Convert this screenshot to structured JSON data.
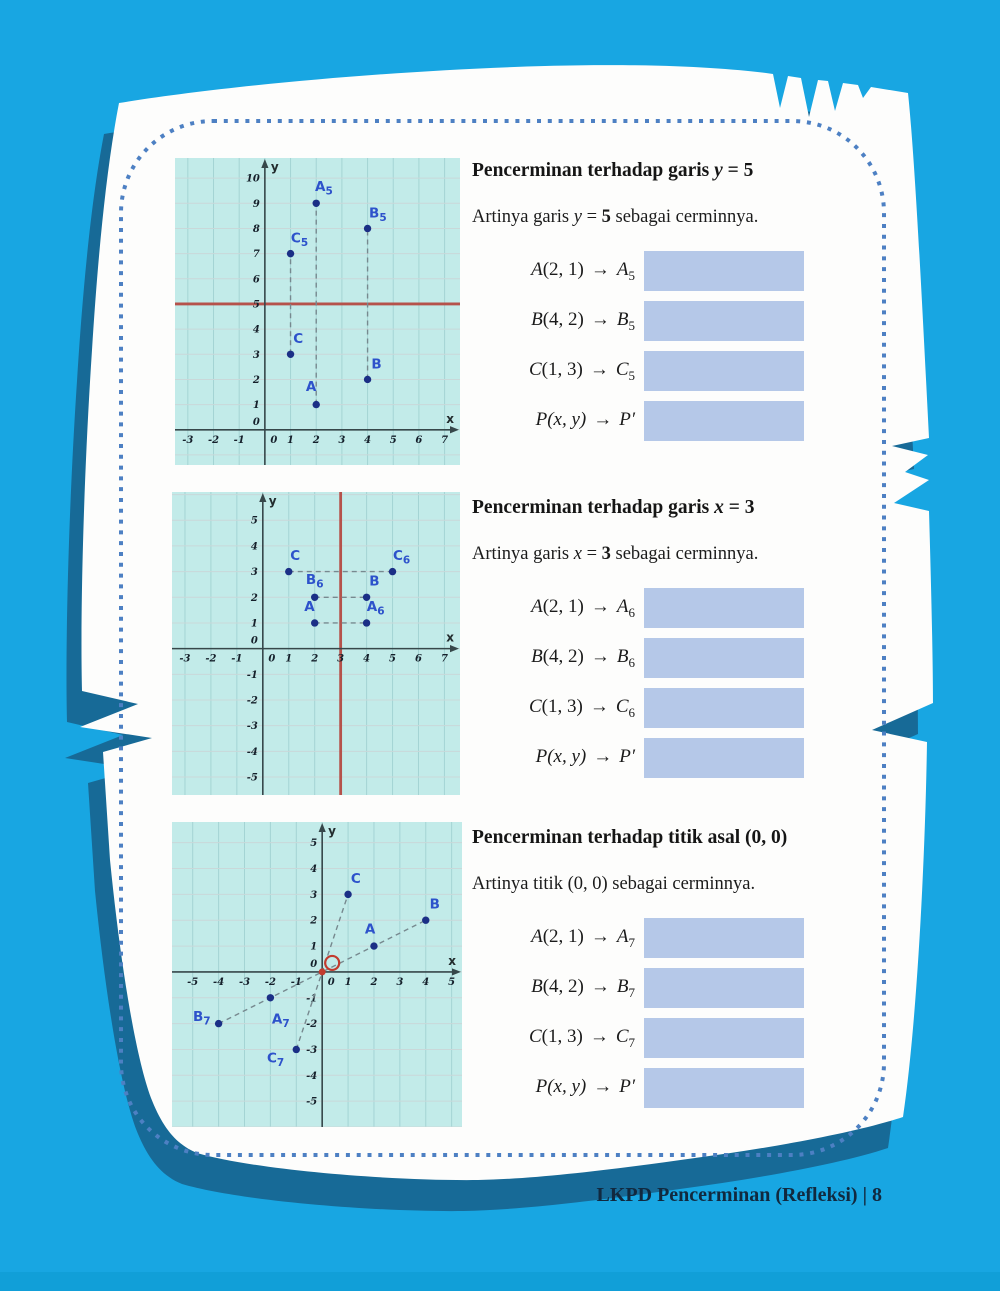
{
  "page": {
    "footer": "LKPD Pencerminan (Refleksi) | 8"
  },
  "sym": {
    "arrow": "→"
  },
  "colors": {
    "background": "#18a6e2",
    "bottom_strip": "#119fd8",
    "paper": "#fdfdfc",
    "paper_shadow": "#176a97",
    "dotted_border": "#4d80c3",
    "plot_bg": "#c2ebe9",
    "grid_v": "#a4d4d4",
    "grid_h": "#c9d8d9",
    "mirror_line": "#b5524b",
    "origin_red": "#c23b2e",
    "axis": "#36474a",
    "tick_text": "#15202b",
    "point": "#1b2f86",
    "point_label": "#2d52cb",
    "answer_box": "#b5c8e8",
    "segment": "#77898f"
  },
  "sections": [
    {
      "title": {
        "pre": "Pencerminan terhadap garis ",
        "var": "y",
        "post": " = 5"
      },
      "sub": {
        "pre": "Artinya garis ",
        "var": "y",
        "mid": " = ",
        "bold": "5",
        "post": " sebagai cerminnya."
      },
      "rows": [
        {
          "l": "A",
          "a": "(2, 1)",
          "r": "A",
          "s": "5",
          "pr": ""
        },
        {
          "l": "B",
          "a": "(4, 2)",
          "r": "B",
          "s": "5",
          "pr": ""
        },
        {
          "l": "C",
          "a": "(1, 3)",
          "r": "C",
          "s": "5",
          "pr": ""
        },
        {
          "l": "P",
          "a": "(x, y)",
          "r": "P",
          "s": "",
          "pr": "′"
        }
      ]
    },
    {
      "title": {
        "pre": "Pencerminan terhadap garis ",
        "var": "x",
        "post": " = 3"
      },
      "sub": {
        "pre": "Artinya garis ",
        "var": "x",
        "mid": " = ",
        "bold": "3",
        "post": " sebagai cerminnya."
      },
      "rows": [
        {
          "l": "A",
          "a": "(2, 1)",
          "r": "A",
          "s": "6",
          "pr": ""
        },
        {
          "l": "B",
          "a": "(4, 2)",
          "r": "B",
          "s": "6",
          "pr": ""
        },
        {
          "l": "C",
          "a": "(1, 3)",
          "r": "C",
          "s": "6",
          "pr": ""
        },
        {
          "l": "P",
          "a": "(x, y)",
          "r": "P",
          "s": "",
          "pr": "′"
        }
      ]
    },
    {
      "title": {
        "pre": "Pencerminan terhadap titik asal (0, 0)",
        "var": "",
        "post": ""
      },
      "sub": {
        "pre": "Artinya titik (0, 0) sebagai cerminnya.",
        "var": "",
        "mid": "",
        "bold": "",
        "post": ""
      },
      "rows": [
        {
          "l": "A",
          "a": "(2, 1)",
          "r": "A",
          "s": "7",
          "pr": ""
        },
        {
          "l": "B",
          "a": "(4, 2)",
          "r": "B",
          "s": "7",
          "pr": ""
        },
        {
          "l": "C",
          "a": "(1, 3)",
          "r": "C",
          "s": "7",
          "pr": ""
        },
        {
          "l": "P",
          "a": "(x, y)",
          "r": "P",
          "s": "",
          "pr": "′"
        }
      ]
    }
  ],
  "chart_data": [
    {
      "type": "scatter",
      "title": "Pencerminan terhadap garis y = 5",
      "xlabel": "x",
      "ylabel": "y",
      "xlim": [
        -3.5,
        7.6
      ],
      "ylim": [
        -1.4,
        10.8
      ],
      "xticks": [
        -3,
        -2,
        -1,
        0,
        1,
        2,
        3,
        4,
        5,
        6,
        7
      ],
      "yticks": [
        0,
        1,
        2,
        3,
        4,
        5,
        6,
        7,
        8,
        9,
        10
      ],
      "grid": true,
      "mirror": {
        "axis": "horizontal",
        "value": 5
      },
      "origin_marker": false,
      "points": [
        {
          "label": "A",
          "sub": "",
          "x": 2,
          "y": 1,
          "lx": 1.8,
          "ly": 1.7
        },
        {
          "label": "B",
          "sub": "",
          "x": 4,
          "y": 2,
          "lx": 4.35,
          "ly": 2.6
        },
        {
          "label": "C",
          "sub": "",
          "x": 1,
          "y": 3,
          "lx": 1.3,
          "ly": 3.6
        },
        {
          "label": "A",
          "sub": "5",
          "x": 2,
          "y": 9,
          "lx": 2.3,
          "ly": 9.65
        },
        {
          "label": "B",
          "sub": "5",
          "x": 4,
          "y": 8,
          "lx": 4.4,
          "ly": 8.6
        },
        {
          "label": "C",
          "sub": "5",
          "x": 1,
          "y": 7,
          "lx": 1.35,
          "ly": 7.6
        }
      ],
      "segments": [
        [
          2,
          1,
          2,
          9
        ],
        [
          4,
          2,
          4,
          8
        ],
        [
          1,
          3,
          1,
          7
        ]
      ]
    },
    {
      "type": "scatter",
      "title": "Pencerminan terhadap garis x = 3",
      "xlabel": "x",
      "ylabel": "y",
      "xlim": [
        -3.5,
        7.6
      ],
      "ylim": [
        -5.7,
        6.1
      ],
      "xticks": [
        -3,
        -2,
        -1,
        0,
        1,
        2,
        3,
        4,
        5,
        6,
        7
      ],
      "yticks": [
        -5,
        -4,
        -3,
        -2,
        -1,
        0,
        1,
        2,
        3,
        4,
        5
      ],
      "grid": true,
      "mirror": {
        "axis": "vertical",
        "value": 3
      },
      "origin_marker": false,
      "points": [
        {
          "label": "A",
          "sub": "",
          "x": 2,
          "y": 1,
          "lx": 1.8,
          "ly": 1.62
        },
        {
          "label": "A",
          "sub": "6",
          "x": 4,
          "y": 1,
          "lx": 4.35,
          "ly": 1.62
        },
        {
          "label": "B",
          "sub": "",
          "x": 4,
          "y": 2,
          "lx": 4.3,
          "ly": 2.62
        },
        {
          "label": "B",
          "sub": "6",
          "x": 2,
          "y": 2,
          "lx": 2.0,
          "ly": 2.68
        },
        {
          "label": "C",
          "sub": "",
          "x": 1,
          "y": 3,
          "lx": 1.25,
          "ly": 3.6
        },
        {
          "label": "C",
          "sub": "6",
          "x": 5,
          "y": 3,
          "lx": 5.35,
          "ly": 3.6
        }
      ],
      "segments": [
        [
          2,
          1,
          4,
          1
        ],
        [
          2,
          2,
          4,
          2
        ],
        [
          1,
          3,
          5,
          3
        ]
      ]
    },
    {
      "type": "scatter",
      "title": "Pencerminan terhadap titik asal (0, 0)",
      "xlabel": "x",
      "ylabel": "y",
      "xlim": [
        -5.8,
        5.4
      ],
      "ylim": [
        -6.0,
        5.8
      ],
      "xticks": [
        -5,
        -4,
        -3,
        -2,
        -1,
        0,
        1,
        2,
        3,
        4,
        5
      ],
      "yticks": [
        -5,
        -4,
        -3,
        -2,
        -1,
        0,
        1,
        2,
        3,
        4,
        5
      ],
      "grid": true,
      "mirror": null,
      "origin_marker": true,
      "points": [
        {
          "label": "A",
          "sub": "",
          "x": 2,
          "y": 1,
          "lx": 1.85,
          "ly": 1.65
        },
        {
          "label": "B",
          "sub": "",
          "x": 4,
          "y": 2,
          "lx": 4.35,
          "ly": 2.6
        },
        {
          "label": "C",
          "sub": "",
          "x": 1,
          "y": 3,
          "lx": 1.3,
          "ly": 3.6
        },
        {
          "label": "A",
          "sub": "7",
          "x": -2,
          "y": -1,
          "lx": -1.6,
          "ly": -1.85
        },
        {
          "label": "B",
          "sub": "7",
          "x": -4,
          "y": -2,
          "lx": -4.65,
          "ly": -1.75
        },
        {
          "label": "C",
          "sub": "7",
          "x": -1,
          "y": -3,
          "lx": -1.8,
          "ly": -3.35
        }
      ],
      "segments": [
        [
          -4,
          -2,
          4,
          2
        ],
        [
          -1,
          -3,
          1,
          3
        ]
      ]
    }
  ]
}
